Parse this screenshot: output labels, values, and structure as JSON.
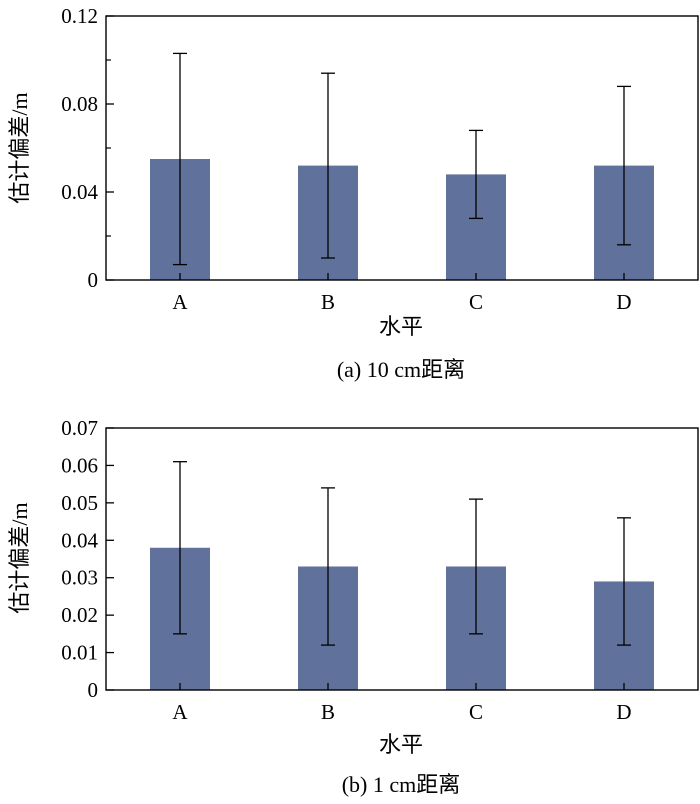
{
  "colors": {
    "bar": "#60729c",
    "axis": "#000000",
    "background": "#ffffff"
  },
  "chart_data": [
    {
      "type": "bar",
      "categories": [
        "A",
        "B",
        "C",
        "D"
      ],
      "values": [
        0.055,
        0.052,
        0.048,
        0.052
      ],
      "error_low": [
        0.007,
        0.01,
        0.028,
        0.016
      ],
      "error_high": [
        0.103,
        0.094,
        0.068,
        0.088
      ],
      "ylim": [
        0,
        0.12
      ],
      "yticks": [
        "0",
        "0.04",
        "0.08",
        "0.12"
      ],
      "ytick_values": [
        0,
        0.04,
        0.08,
        0.12
      ],
      "yminor_values": [
        0.02,
        0.06,
        0.1
      ],
      "xlabel": "水平",
      "ylabel": "估计偏差/m",
      "caption": "(a) 10 cm距离",
      "grid": false
    },
    {
      "type": "bar",
      "categories": [
        "A",
        "B",
        "C",
        "D"
      ],
      "values": [
        0.038,
        0.033,
        0.033,
        0.029
      ],
      "error_low": [
        0.015,
        0.012,
        0.015,
        0.012
      ],
      "error_high": [
        0.061,
        0.054,
        0.051,
        0.046
      ],
      "ylim": [
        0,
        0.07
      ],
      "yticks": [
        "0",
        "0.01",
        "0.02",
        "0.03",
        "0.04",
        "0.05",
        "0.06",
        "0.07"
      ],
      "ytick_values": [
        0,
        0.01,
        0.02,
        0.03,
        0.04,
        0.05,
        0.06,
        0.07
      ],
      "yminor_values": [],
      "xlabel": "水平",
      "ylabel": "估计偏差/m",
      "caption": "(b) 1 cm距离",
      "grid": false
    }
  ]
}
